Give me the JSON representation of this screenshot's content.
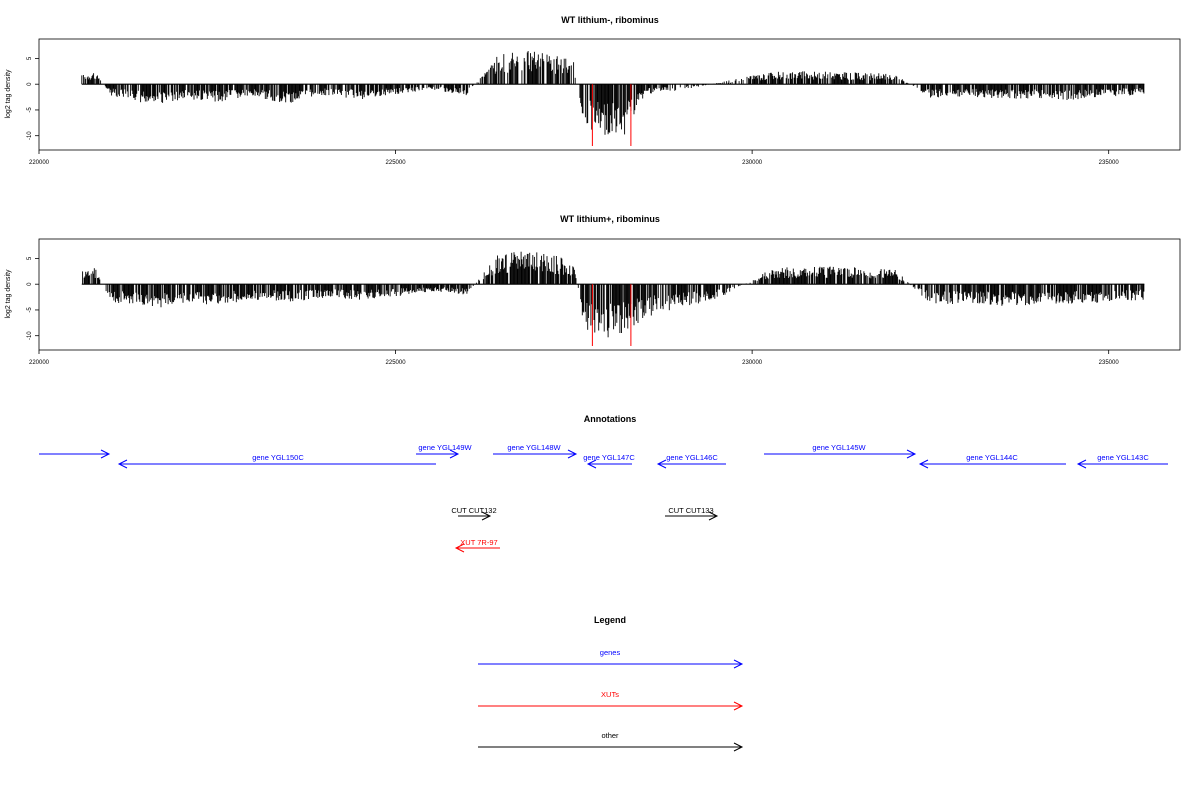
{
  "chart_data": [
    {
      "type": "bar",
      "title": "WT lithium-, ribominus",
      "ylabel": "log2 tag density",
      "xlim": [
        220000,
        236000
      ],
      "ylim": [
        -12,
        8
      ],
      "xticks": [
        "220000",
        "225000",
        "230000",
        "235000"
      ],
      "yticks": [
        "5",
        "0",
        "-5",
        "-10"
      ],
      "data_range": [
        220600,
        235500
      ],
      "series": [
        {
          "values": [
            [
              220600,
              1.8
            ],
            [
              220800,
              2.8
            ],
            [
              221000,
              -2.2
            ],
            [
              221300,
              -3.2
            ],
            [
              221600,
              -4.0
            ],
            [
              222000,
              -3.0
            ],
            [
              222500,
              -3.5
            ],
            [
              223000,
              -2.6
            ],
            [
              223500,
              -3.8
            ],
            [
              224000,
              -2.2
            ],
            [
              224500,
              -3.0
            ],
            [
              225000,
              -2.0
            ],
            [
              225500,
              -1.0
            ],
            [
              226000,
              -2.2
            ],
            [
              226450,
              6.0
            ],
            [
              226800,
              6.8
            ],
            [
              227200,
              5.8
            ],
            [
              227500,
              4.5
            ],
            [
              227650,
              -8.5
            ],
            [
              227900,
              -10.0
            ],
            [
              228200,
              -10.5
            ],
            [
              228500,
              -2.0
            ],
            [
              229000,
              -1.2
            ],
            [
              230300,
              2.5
            ],
            [
              231000,
              2.5
            ],
            [
              232000,
              2.0
            ],
            [
              232500,
              -2.6
            ],
            [
              233000,
              -2.4
            ],
            [
              233500,
              -3.0
            ],
            [
              234000,
              -2.8
            ],
            [
              234500,
              -3.2
            ],
            [
              235000,
              -2.5
            ],
            [
              235500,
              -2.0
            ]
          ]
        }
      ],
      "markers": [
        227760,
        228300
      ]
    },
    {
      "type": "bar",
      "title": "WT lithium+, ribominus",
      "ylabel": "log2 tag density",
      "xlim": [
        220000,
        236000
      ],
      "ylim": [
        -12,
        8
      ],
      "xticks": [
        "220000",
        "225000",
        "230000",
        "235000"
      ],
      "yticks": [
        "5",
        "0",
        "-5",
        "-10"
      ],
      "data_range": [
        220600,
        235500
      ],
      "series": [
        {
          "values": [
            [
              220600,
              3.0
            ],
            [
              220800,
              3.2
            ],
            [
              221000,
              -3.5
            ],
            [
              221300,
              -4.2
            ],
            [
              221600,
              -4.8
            ],
            [
              222000,
              -3.8
            ],
            [
              222500,
              -4.2
            ],
            [
              223000,
              -3.2
            ],
            [
              223500,
              -3.5
            ],
            [
              224000,
              -2.8
            ],
            [
              224500,
              -3.0
            ],
            [
              225000,
              -2.4
            ],
            [
              225500,
              -1.5
            ],
            [
              226000,
              -2.0
            ],
            [
              226450,
              6.0
            ],
            [
              226800,
              6.5
            ],
            [
              227200,
              5.8
            ],
            [
              227500,
              4.5
            ],
            [
              227650,
              -9.0
            ],
            [
              227900,
              -10.5
            ],
            [
              228200,
              -10.0
            ],
            [
              228500,
              -6.5
            ],
            [
              229000,
              -4.5
            ],
            [
              229500,
              -3.0
            ],
            [
              230300,
              3.2
            ],
            [
              231000,
              3.5
            ],
            [
              232000,
              3.0
            ],
            [
              232500,
              -4.0
            ],
            [
              233000,
              -3.8
            ],
            [
              233500,
              -4.2
            ],
            [
              234000,
              -4.0
            ],
            [
              234500,
              -3.8
            ],
            [
              235000,
              -3.5
            ],
            [
              235500,
              -3.0
            ]
          ]
        }
      ],
      "markers": [
        227760,
        228300
      ]
    }
  ],
  "annotations": {
    "title": "Annotations",
    "genes": [
      {
        "label": "",
        "dir": "right",
        "color": "#0000ff"
      },
      {
        "label": "gene YGL150C",
        "dir": "left",
        "color": "#0000ff"
      },
      {
        "label": "gene YGL149W",
        "dir": "right",
        "color": "#0000ff"
      },
      {
        "label": "gene YGL148W",
        "dir": "right",
        "color": "#0000ff"
      },
      {
        "label": "gene YGL147C",
        "dir": "left",
        "color": "#0000ff"
      },
      {
        "label": "gene YGL146C",
        "dir": "left",
        "color": "#0000ff"
      },
      {
        "label": "gene YGL145W",
        "dir": "right",
        "color": "#0000ff"
      },
      {
        "label": "gene YGL144C",
        "dir": "left",
        "color": "#0000ff"
      },
      {
        "label": "gene YGL143C",
        "dir": "left",
        "color": "#0000ff"
      }
    ],
    "other": [
      {
        "label": "CUT CUT132",
        "dir": "right",
        "color": "#000000"
      },
      {
        "label": "CUT CUT133",
        "dir": "right",
        "color": "#000000"
      }
    ],
    "xuts": [
      {
        "label": "XUT 7R-97",
        "dir": "left",
        "color": "#ff0000"
      }
    ]
  },
  "legend": {
    "title": "Legend",
    "items": [
      {
        "label": "genes",
        "color": "#0000ff"
      },
      {
        "label": "XUTs",
        "color": "#ff0000"
      },
      {
        "label": "other",
        "color": "#000000"
      }
    ]
  }
}
